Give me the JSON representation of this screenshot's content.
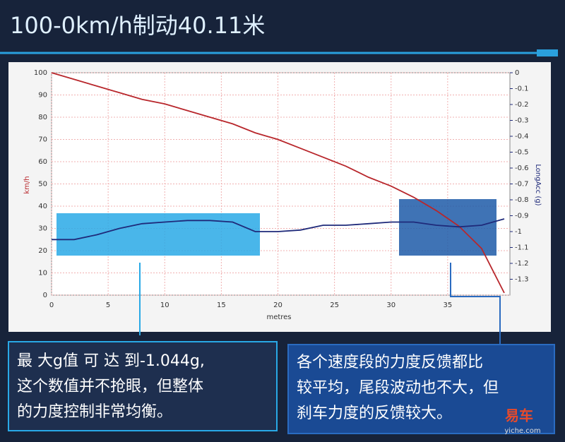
{
  "chart_data": {
    "type": "line",
    "title": "100-0km/h制动40.11米",
    "x_label": "metres",
    "y_label": "km/h",
    "y2_label": "LongAcc (g)",
    "x": [
      0,
      2,
      4,
      6,
      8,
      10,
      12,
      14,
      16,
      18,
      20,
      22,
      24,
      26,
      28,
      30,
      32,
      34,
      36,
      38,
      40
    ],
    "series": [
      {
        "name": "km/h",
        "color": "#b8262b",
        "values": [
          100,
          97,
          94,
          91,
          88,
          86,
          83,
          80,
          77,
          73,
          70,
          66,
          62,
          58,
          53,
          49,
          44,
          38,
          31,
          21,
          1
        ]
      },
      {
        "name": "LongAcc (g)",
        "color": "#1f2a7a",
        "axis": "y2",
        "values": [
          -1.05,
          -1.05,
          -1.02,
          -0.98,
          -0.95,
          -0.94,
          -0.93,
          -0.93,
          -0.94,
          -1.0,
          -1.0,
          -0.99,
          -0.96,
          -0.96,
          -0.95,
          -0.94,
          -0.94,
          -0.96,
          -0.97,
          -0.96,
          -0.92
        ]
      }
    ],
    "xlim": [
      0,
      40.5
    ],
    "xticks": [
      0,
      5,
      10,
      15,
      20,
      25,
      30,
      35
    ],
    "ylim": [
      0,
      100
    ],
    "yticks": [
      0,
      10,
      20,
      30,
      40,
      50,
      60,
      70,
      80,
      90,
      100
    ],
    "y2lim": [
      -1.4,
      0
    ],
    "y2ticks": [
      0,
      -0.1,
      -0.2,
      -0.3,
      -0.4,
      -0.5,
      -0.6,
      -0.7,
      -0.8,
      -0.9,
      -1,
      -1.1,
      -1.2,
      -1.3
    ],
    "grid": true,
    "annotations": [
      {
        "lines": [
          "最 大g值 可 达 到-1.044g,",
          "这个数值并不抢眼，但整体",
          "的力度控制非常均衡。"
        ]
      },
      {
        "lines": [
          "各个速度段的力度反馈都比",
          "较平均，尾段波动也不大，但",
          "刹车力度的反馈较大。"
        ]
      }
    ],
    "brand": "易车",
    "brand_url": "yiche.com"
  }
}
